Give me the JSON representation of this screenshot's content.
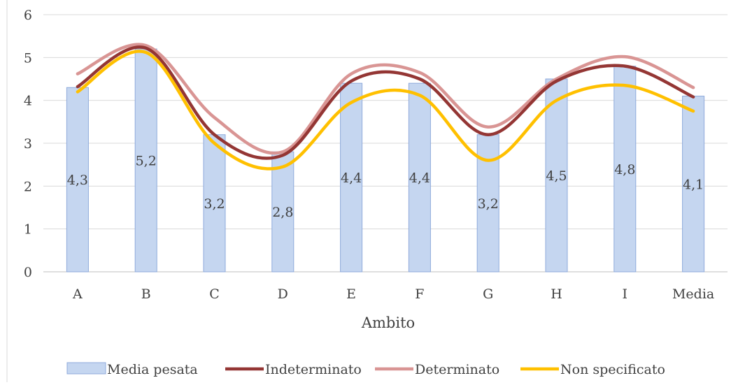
{
  "chart_data": {
    "type": "bar",
    "title": "",
    "xlabel": "Ambito",
    "ylabel": "",
    "categories": [
      "A",
      "B",
      "C",
      "D",
      "E",
      "F",
      "G",
      "H",
      "I",
      "Media"
    ],
    "ylim": [
      0,
      6
    ],
    "yticks": [
      0,
      1,
      2,
      3,
      4,
      5,
      6
    ],
    "grid": true,
    "legend_position": "bottom",
    "bar_series": {
      "name": "Media pesata",
      "values": [
        4.3,
        5.2,
        3.2,
        2.8,
        4.4,
        4.4,
        3.2,
        4.5,
        4.8,
        4.1
      ],
      "labels": [
        "4,3",
        "5,2",
        "3,2",
        "2,8",
        "4,4",
        "4,4",
        "3,2",
        "4,5",
        "4,8",
        "4,1"
      ],
      "fill": "#c5d6f0",
      "stroke": "#8eaadb"
    },
    "line_series": [
      {
        "name": "Indeterminato",
        "values": [
          4.32,
          5.22,
          3.2,
          2.72,
          4.45,
          4.5,
          3.2,
          4.45,
          4.8,
          4.08
        ],
        "color": "#943634"
      },
      {
        "name": "Determinato",
        "values": [
          4.62,
          5.28,
          3.6,
          2.8,
          4.62,
          4.65,
          3.38,
          4.5,
          5.02,
          4.3
        ],
        "color": "#d99594"
      },
      {
        "name": "Non specificato",
        "values": [
          4.2,
          5.12,
          3.0,
          2.45,
          3.95,
          4.12,
          2.6,
          4.0,
          4.35,
          3.75
        ],
        "color": "#ffc000"
      }
    ]
  }
}
